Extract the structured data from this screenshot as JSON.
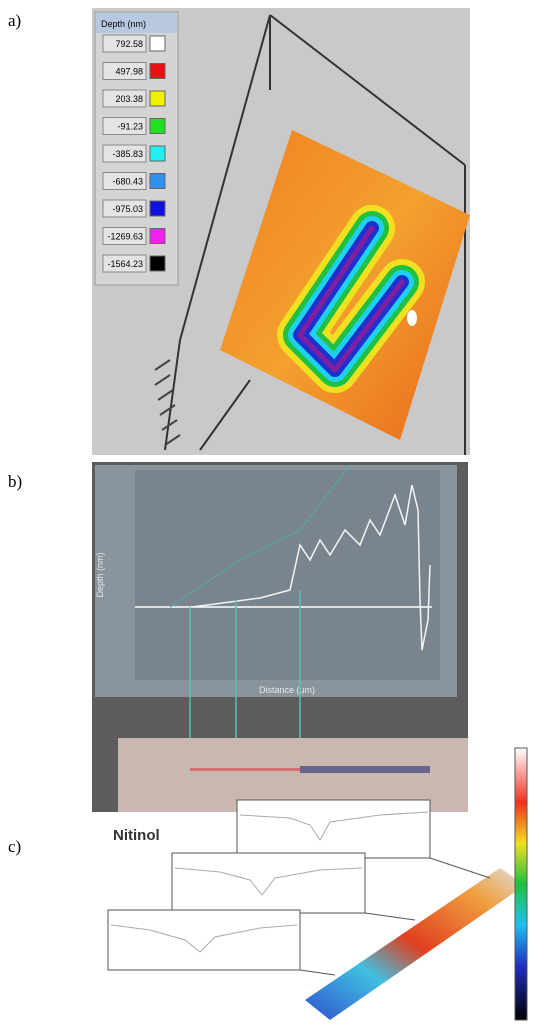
{
  "panels": [
    {
      "label": "a)",
      "legend": {
        "title": "Depth (nm)",
        "entries": [
          "792.58",
          "497.98",
          "203.38",
          "-91.23",
          "-385.83",
          "-680.43",
          "-975.03",
          "-1269.63",
          "-1564.23"
        ]
      }
    },
    {
      "label": "b)",
      "y_label": "Depth (nm)",
      "x_label": "Distance (um)"
    },
    {
      "label": "c)",
      "title": "Nitinol"
    }
  ]
}
